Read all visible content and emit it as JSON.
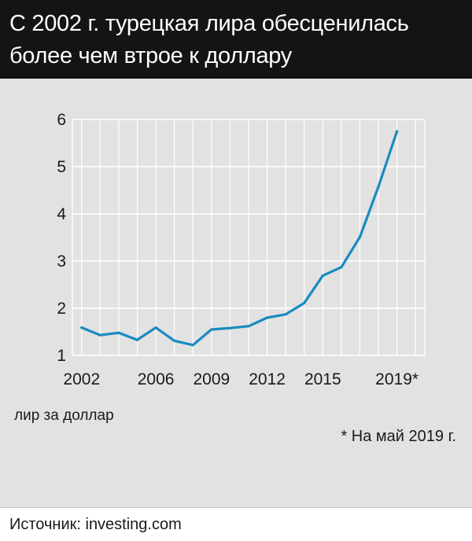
{
  "title_line1": "С 2002 г. турецкая лира обесценилась",
  "title_line2": "более чем втрое к доллару",
  "source": "Источник: investing.com",
  "note": "* На май 2019 г.",
  "colors": {
    "line": "#1a8bbf",
    "header_bg": "#141414",
    "panel_bg": "#e2e2e2",
    "grid": "#ffffff"
  },
  "chart_data": {
    "type": "line",
    "title": "С 2002 г. турецкая лира обесценилась более чем втрое к доллару",
    "ylabel": "лир за доллар",
    "xlabel": "",
    "xlim": [
      2001.5,
      2020.5
    ],
    "ylim": [
      1,
      6
    ],
    "grid": true,
    "x_ticks": [
      {
        "value": 2002,
        "label": "2002"
      },
      {
        "value": 2006,
        "label": "2006"
      },
      {
        "value": 2009,
        "label": "2009"
      },
      {
        "value": 2012,
        "label": "2012"
      },
      {
        "value": 2015,
        "label": "2015"
      },
      {
        "value": 2019,
        "label": "2019*"
      }
    ],
    "y_ticks": [
      1,
      2,
      3,
      4,
      5,
      6
    ],
    "x": [
      2002,
      2003,
      2004,
      2005,
      2006,
      2007,
      2008,
      2009,
      2010,
      2011,
      2012,
      2013,
      2014,
      2015,
      2016,
      2017,
      2018,
      2019
    ],
    "values": [
      1.59,
      1.43,
      1.48,
      1.33,
      1.59,
      1.31,
      1.22,
      1.55,
      1.58,
      1.62,
      1.8,
      1.87,
      2.11,
      2.69,
      2.87,
      3.51,
      4.58,
      5.75
    ]
  }
}
